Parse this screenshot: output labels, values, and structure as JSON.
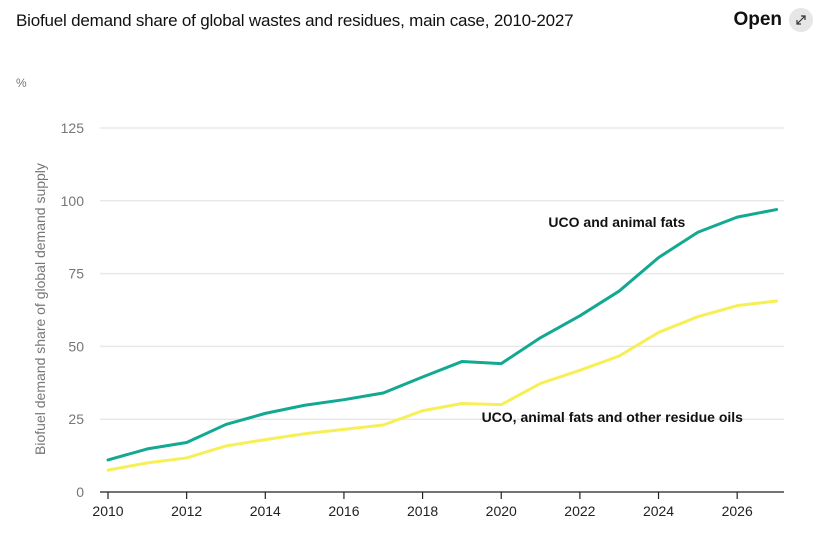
{
  "header": {
    "title": "Biofuel demand share of global wastes and residues, main case, 2010-2027",
    "open_label": "Open",
    "open_icon": "expand-arrow-icon"
  },
  "colors": {
    "uco_animal_fats": "#12a892",
    "uco_animal_fats_other": "#f7ef56",
    "grid": "#e8e8e8",
    "axis": "#222222"
  },
  "chart_data": {
    "type": "line",
    "title": "Biofuel demand share of global wastes and residues, main case, 2010-2027",
    "unit": "%",
    "xlabel": "",
    "ylabel": "Biofuel demand share of global demand supply",
    "x": [
      2010,
      2011,
      2012,
      2013,
      2014,
      2015,
      2016,
      2017,
      2018,
      2019,
      2020,
      2021,
      2022,
      2023,
      2024,
      2025,
      2026,
      2027
    ],
    "xlim": [
      2010,
      2027
    ],
    "ylim": [
      0,
      125
    ],
    "grid": true,
    "x_ticks": [
      "2010",
      "2012",
      "2014",
      "2016",
      "2018",
      "2020",
      "2022",
      "2024",
      "2026"
    ],
    "x_tick_values": [
      2010,
      2012,
      2014,
      2016,
      2018,
      2020,
      2022,
      2024,
      2026
    ],
    "y_ticks": [
      "0",
      "25",
      "50",
      "75",
      "100",
      "125"
    ],
    "y_tick_values": [
      0,
      25,
      50,
      75,
      100,
      125
    ],
    "series": [
      {
        "name": "UCO and animal fats",
        "values": [
          11,
          14.8,
          17,
          23.2,
          27,
          29.8,
          31.7,
          34,
          39.5,
          44.8,
          44.1,
          53,
          60.5,
          69,
          80.5,
          89.2,
          94.4,
          97
        ],
        "label_anchor_year": 2021.2,
        "label_anchor_value": 91
      },
      {
        "name": "UCO, animal fats and other residue oils",
        "values": [
          7.5,
          10,
          11.7,
          15.8,
          18,
          20,
          21.5,
          23,
          27.9,
          30.4,
          30,
          37.3,
          41.8,
          46.7,
          54.8,
          60.2,
          64,
          65.6
        ],
        "label_anchor_year": 2019.5,
        "label_anchor_value": 24
      }
    ]
  }
}
